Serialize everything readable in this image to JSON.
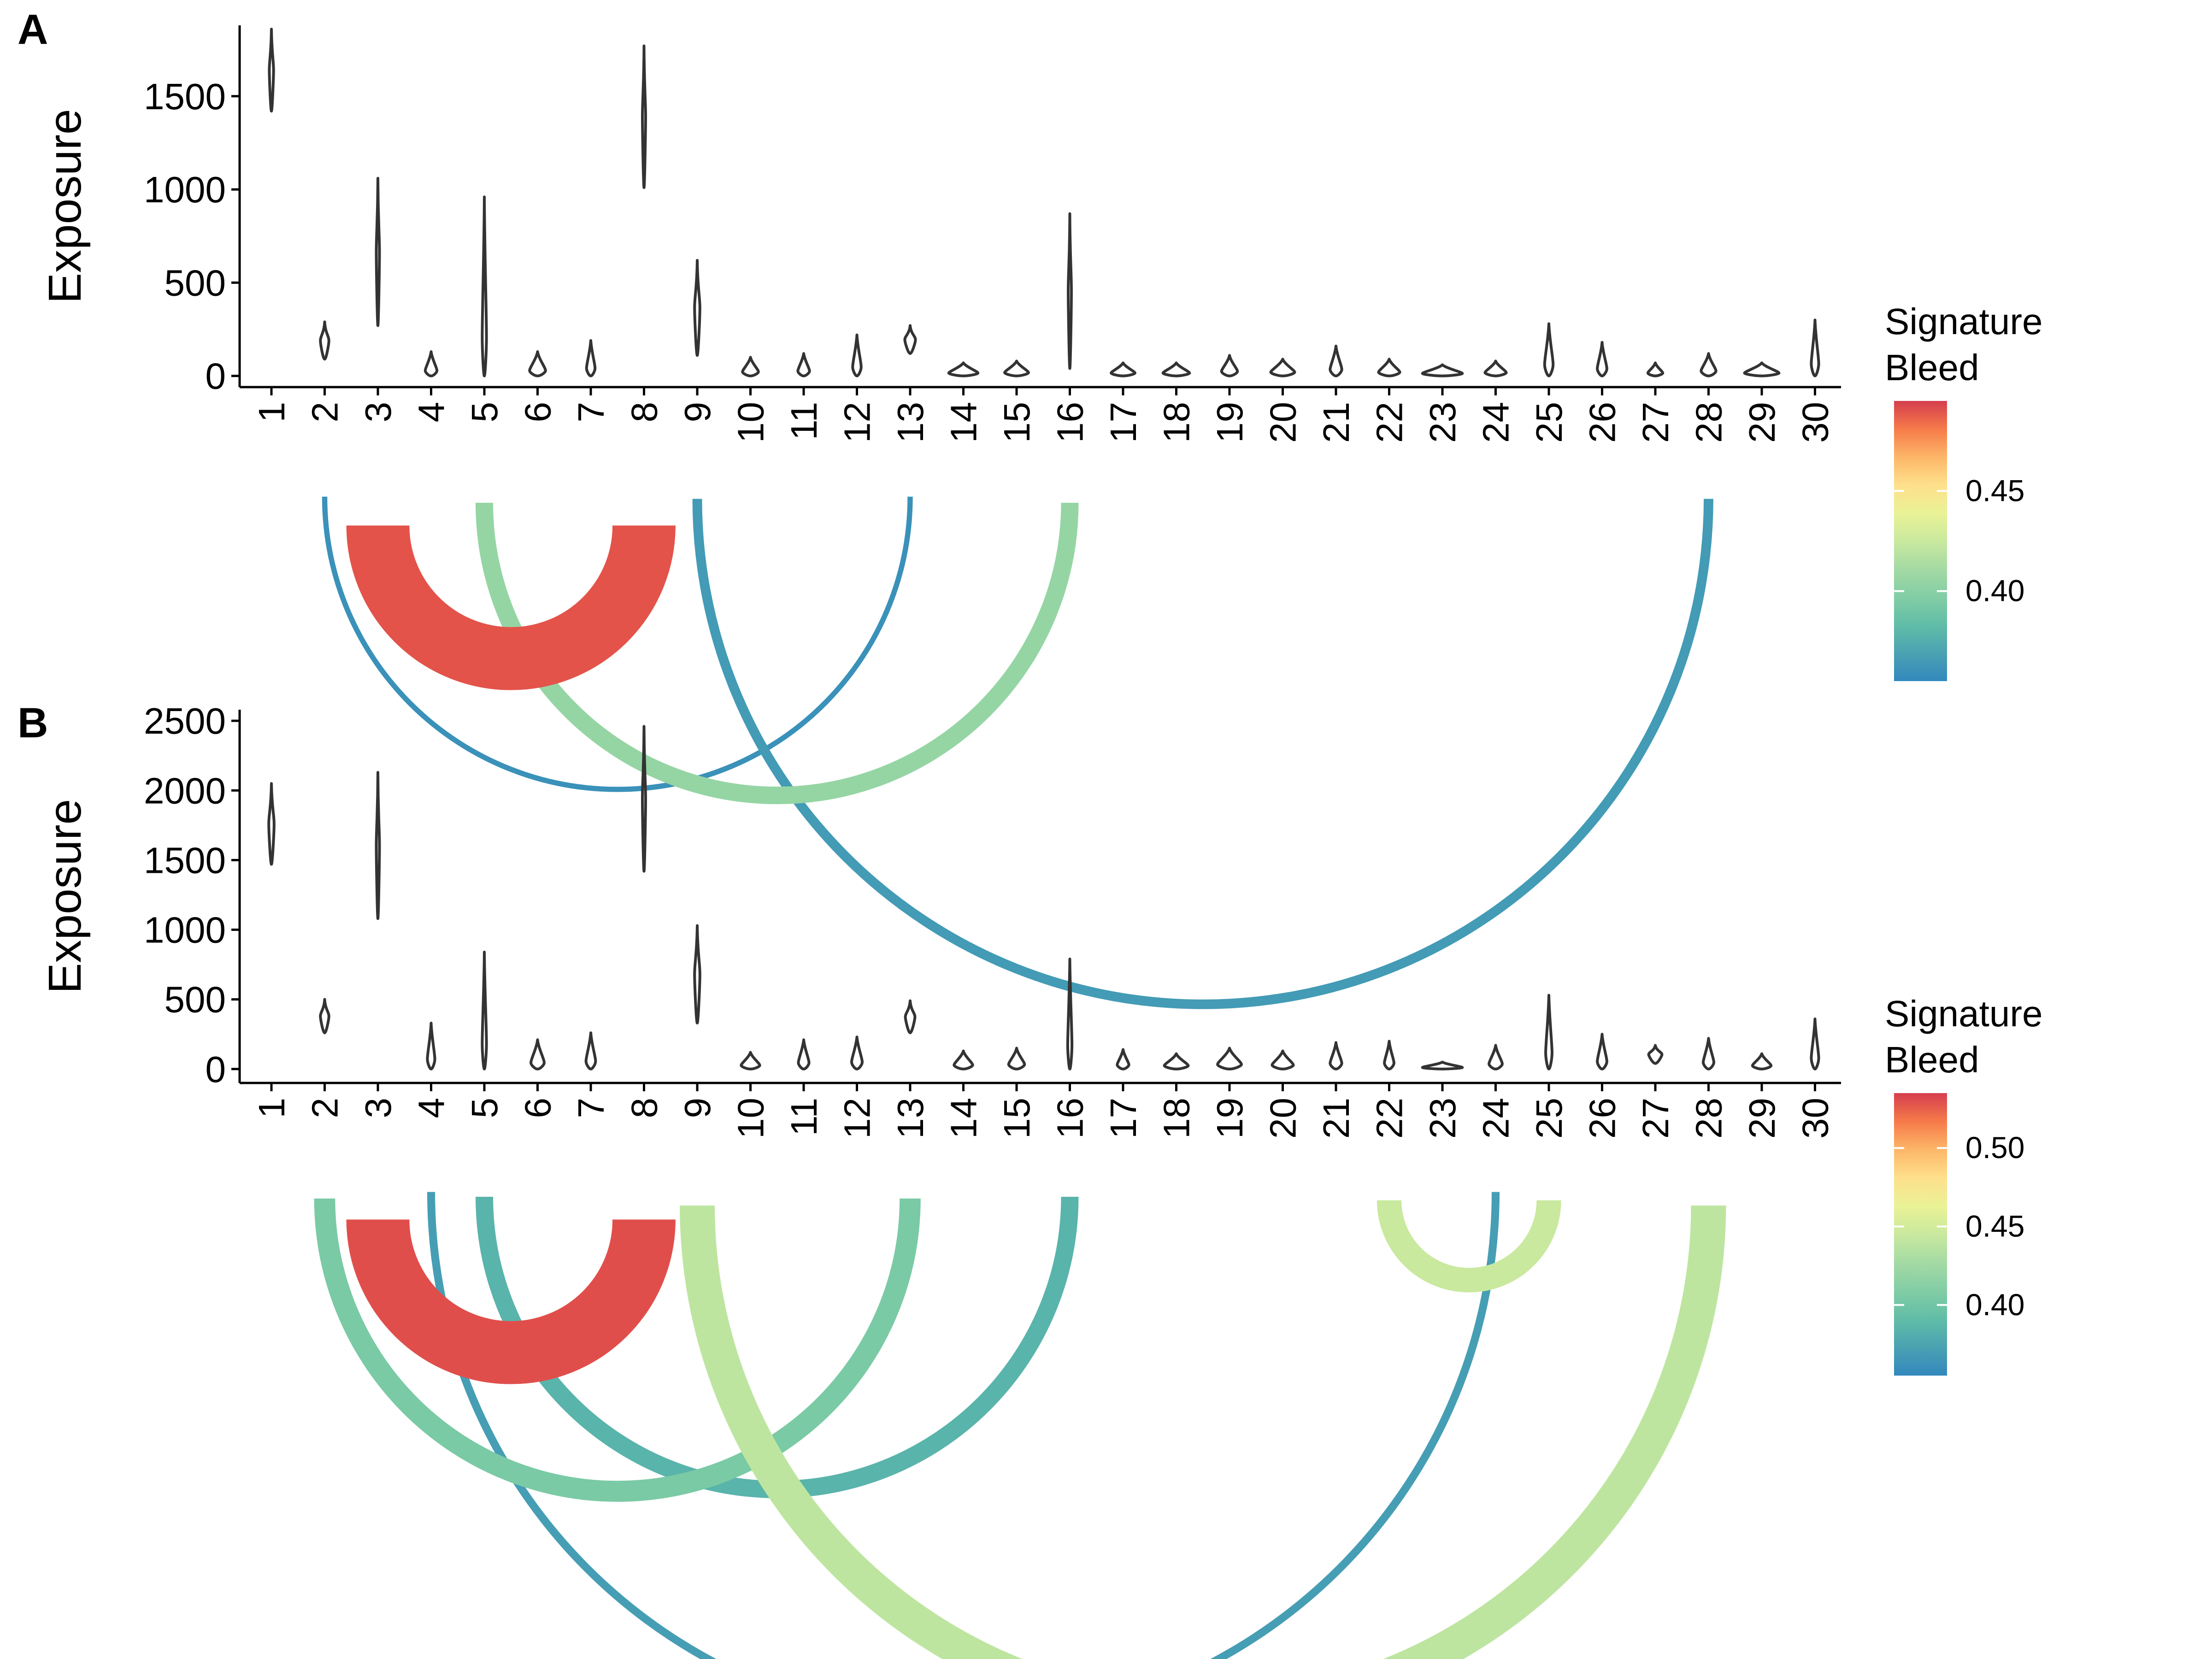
{
  "chart_data": [
    {
      "panel_label": "A",
      "type": "violin",
      "ylabel": "Exposure",
      "ylim": [
        -60,
        1880
      ],
      "yticks": [
        0,
        500,
        1000,
        1500
      ],
      "categories": [
        "1",
        "2",
        "3",
        "4",
        "5",
        "6",
        "7",
        "8",
        "9",
        "10",
        "11",
        "12",
        "13",
        "14",
        "15",
        "16",
        "17",
        "18",
        "19",
        "20",
        "21",
        "22",
        "23",
        "24",
        "25",
        "26",
        "27",
        "28",
        "29",
        "30"
      ],
      "violins": [
        {
          "cat": "1",
          "min": 1420,
          "max": 1860,
          "width": 0.08
        },
        {
          "cat": "2",
          "min": 90,
          "max": 290,
          "width": 0.16
        },
        {
          "cat": "3",
          "min": 270,
          "max": 1060,
          "width": 0.06
        },
        {
          "cat": "4",
          "min": 0,
          "max": 130,
          "width": 0.22
        },
        {
          "cat": "5",
          "min": 0,
          "max": 960,
          "width": 0.08
        },
        {
          "cat": "6",
          "min": 0,
          "max": 130,
          "width": 0.3
        },
        {
          "cat": "7",
          "min": 0,
          "max": 190,
          "width": 0.16
        },
        {
          "cat": "8",
          "min": 1010,
          "max": 1770,
          "width": 0.06
        },
        {
          "cat": "9",
          "min": 110,
          "max": 620,
          "width": 0.1
        },
        {
          "cat": "10",
          "min": 0,
          "max": 100,
          "width": 0.3
        },
        {
          "cat": "11",
          "min": 0,
          "max": 120,
          "width": 0.22
        },
        {
          "cat": "12",
          "min": 0,
          "max": 220,
          "width": 0.16
        },
        {
          "cat": "13",
          "min": 120,
          "max": 270,
          "width": 0.2
        },
        {
          "cat": "14",
          "min": 0,
          "max": 70,
          "width": 0.55
        },
        {
          "cat": "15",
          "min": 0,
          "max": 80,
          "width": 0.45
        },
        {
          "cat": "16",
          "min": 40,
          "max": 870,
          "width": 0.06
        },
        {
          "cat": "17",
          "min": 0,
          "max": 70,
          "width": 0.45
        },
        {
          "cat": "18",
          "min": 0,
          "max": 70,
          "width": 0.5
        },
        {
          "cat": "19",
          "min": 0,
          "max": 110,
          "width": 0.3
        },
        {
          "cat": "20",
          "min": 0,
          "max": 90,
          "width": 0.45
        },
        {
          "cat": "21",
          "min": 0,
          "max": 160,
          "width": 0.22
        },
        {
          "cat": "22",
          "min": 0,
          "max": 90,
          "width": 0.4
        },
        {
          "cat": "23",
          "min": 0,
          "max": 60,
          "width": 0.75
        },
        {
          "cat": "24",
          "min": 0,
          "max": 80,
          "width": 0.4
        },
        {
          "cat": "25",
          "min": 0,
          "max": 280,
          "width": 0.16
        },
        {
          "cat": "26",
          "min": 0,
          "max": 180,
          "width": 0.18
        },
        {
          "cat": "27",
          "min": 0,
          "max": 70,
          "width": 0.28
        },
        {
          "cat": "28",
          "min": 0,
          "max": 120,
          "width": 0.28
        },
        {
          "cat": "29",
          "min": 0,
          "max": 70,
          "width": 0.65
        },
        {
          "cat": "30",
          "min": 0,
          "max": 300,
          "width": 0.14
        }
      ],
      "arcs": [
        {
          "from": "2",
          "to": "13",
          "bleed": 0.36,
          "thickness": 0.3
        },
        {
          "from": "3",
          "to": "8",
          "bleed": 0.49,
          "thickness": 3.6
        },
        {
          "from": "5",
          "to": "16",
          "bleed": 0.405,
          "thickness": 1.0
        },
        {
          "from": "9",
          "to": "28",
          "bleed": 0.365,
          "thickness": 0.55
        }
      ],
      "legend": {
        "title_line1": "Signature",
        "title_line2": "Bleed",
        "ticks": [
          0.4,
          0.45
        ],
        "tick_labels": [
          "0.40",
          "0.45"
        ],
        "range": [
          0.355,
          0.495
        ]
      }
    },
    {
      "panel_label": "B",
      "type": "violin",
      "ylabel": "Exposure",
      "ylim": [
        -100,
        2580
      ],
      "yticks": [
        0,
        500,
        1000,
        1500,
        2000,
        2500
      ],
      "categories": [
        "1",
        "2",
        "3",
        "4",
        "5",
        "6",
        "7",
        "8",
        "9",
        "10",
        "11",
        "12",
        "13",
        "14",
        "15",
        "16",
        "17",
        "18",
        "19",
        "20",
        "21",
        "22",
        "23",
        "24",
        "25",
        "26",
        "27",
        "28",
        "29",
        "30"
      ],
      "violins": [
        {
          "cat": "1",
          "min": 1470,
          "max": 2050,
          "width": 0.1
        },
        {
          "cat": "2",
          "min": 260,
          "max": 500,
          "width": 0.16
        },
        {
          "cat": "3",
          "min": 1080,
          "max": 2130,
          "width": 0.06
        },
        {
          "cat": "4",
          "min": 0,
          "max": 330,
          "width": 0.14
        },
        {
          "cat": "5",
          "min": 0,
          "max": 840,
          "width": 0.08
        },
        {
          "cat": "6",
          "min": 0,
          "max": 210,
          "width": 0.25
        },
        {
          "cat": "7",
          "min": 0,
          "max": 260,
          "width": 0.18
        },
        {
          "cat": "8",
          "min": 1420,
          "max": 2460,
          "width": 0.06
        },
        {
          "cat": "9",
          "min": 330,
          "max": 1030,
          "width": 0.1
        },
        {
          "cat": "10",
          "min": 0,
          "max": 120,
          "width": 0.35
        },
        {
          "cat": "11",
          "min": 0,
          "max": 210,
          "width": 0.2
        },
        {
          "cat": "12",
          "min": 0,
          "max": 230,
          "width": 0.2
        },
        {
          "cat": "13",
          "min": 260,
          "max": 490,
          "width": 0.18
        },
        {
          "cat": "14",
          "min": 0,
          "max": 130,
          "width": 0.35
        },
        {
          "cat": "15",
          "min": 0,
          "max": 150,
          "width": 0.3
        },
        {
          "cat": "16",
          "min": 0,
          "max": 790,
          "width": 0.08
        },
        {
          "cat": "17",
          "min": 0,
          "max": 140,
          "width": 0.22
        },
        {
          "cat": "18",
          "min": 0,
          "max": 110,
          "width": 0.45
        },
        {
          "cat": "19",
          "min": 0,
          "max": 150,
          "width": 0.45
        },
        {
          "cat": "20",
          "min": 0,
          "max": 130,
          "width": 0.4
        },
        {
          "cat": "21",
          "min": 0,
          "max": 190,
          "width": 0.22
        },
        {
          "cat": "22",
          "min": 0,
          "max": 200,
          "width": 0.18
        },
        {
          "cat": "23",
          "min": 0,
          "max": 50,
          "width": 0.75
        },
        {
          "cat": "24",
          "min": 0,
          "max": 170,
          "width": 0.25
        },
        {
          "cat": "25",
          "min": 0,
          "max": 530,
          "width": 0.12
        },
        {
          "cat": "26",
          "min": 0,
          "max": 250,
          "width": 0.18
        },
        {
          "cat": "27",
          "min": 40,
          "max": 170,
          "width": 0.25
        },
        {
          "cat": "28",
          "min": 0,
          "max": 220,
          "width": 0.2
        },
        {
          "cat": "29",
          "min": 0,
          "max": 110,
          "width": 0.35
        },
        {
          "cat": "30",
          "min": 0,
          "max": 360,
          "width": 0.14
        }
      ],
      "arcs": [
        {
          "from": "2",
          "to": "13",
          "bleed": 0.405,
          "thickness": 1.2
        },
        {
          "from": "3",
          "to": "8",
          "bleed": 0.53,
          "thickness": 3.6
        },
        {
          "from": "4",
          "to": "24",
          "bleed": 0.37,
          "thickness": 0.45
        },
        {
          "from": "5",
          "to": "16",
          "bleed": 0.385,
          "thickness": 1.0
        },
        {
          "from": "9",
          "to": "28",
          "bleed": 0.44,
          "thickness": 2.0
        },
        {
          "from": "22",
          "to": "25",
          "bleed": 0.445,
          "thickness": 1.4
        }
      ],
      "legend": {
        "title_line1": "Signature",
        "title_line2": "Bleed",
        "ticks": [
          0.4,
          0.45,
          0.5
        ],
        "tick_labels": [
          "0.40",
          "0.45",
          "0.50"
        ],
        "range": [
          0.355,
          0.535
        ]
      }
    }
  ]
}
